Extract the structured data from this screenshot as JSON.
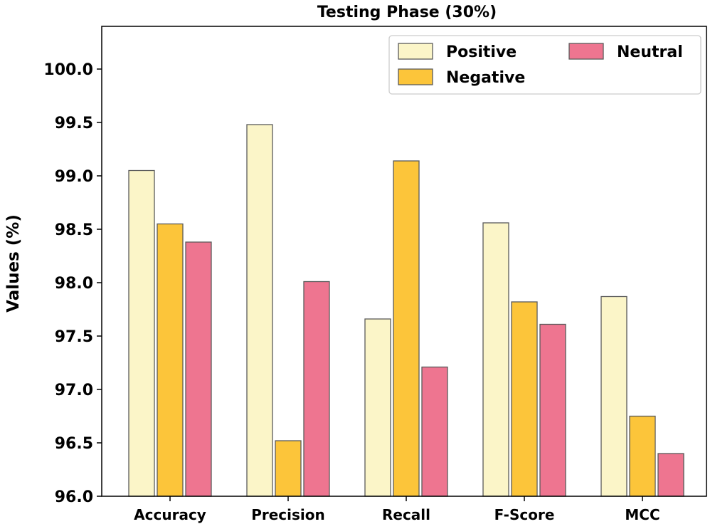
{
  "chart_data": {
    "type": "bar",
    "title": "Testing Phase (30%)",
    "xlabel": "",
    "ylabel": "Values (%)",
    "ylim": [
      96.0,
      100.4
    ],
    "yticks": [
      "96.0",
      "96.5",
      "97.0",
      "97.5",
      "98.0",
      "98.5",
      "99.0",
      "99.5",
      "100.0"
    ],
    "grid": false,
    "legend_position": "top-right",
    "categories": [
      "Accuracy",
      "Precision",
      "Recall",
      "F-Score",
      "MCC"
    ],
    "series": [
      {
        "name": "Positive",
        "color": "#fbf5c8",
        "values": [
          99.05,
          99.48,
          97.66,
          98.56,
          97.87
        ]
      },
      {
        "name": "Negative",
        "color": "#fcc53a",
        "values": [
          98.55,
          96.52,
          99.14,
          97.82,
          96.75
        ]
      },
      {
        "name": "Neutral",
        "color": "#ee7590",
        "values": [
          98.38,
          98.01,
          97.21,
          97.61,
          96.4
        ]
      }
    ]
  }
}
